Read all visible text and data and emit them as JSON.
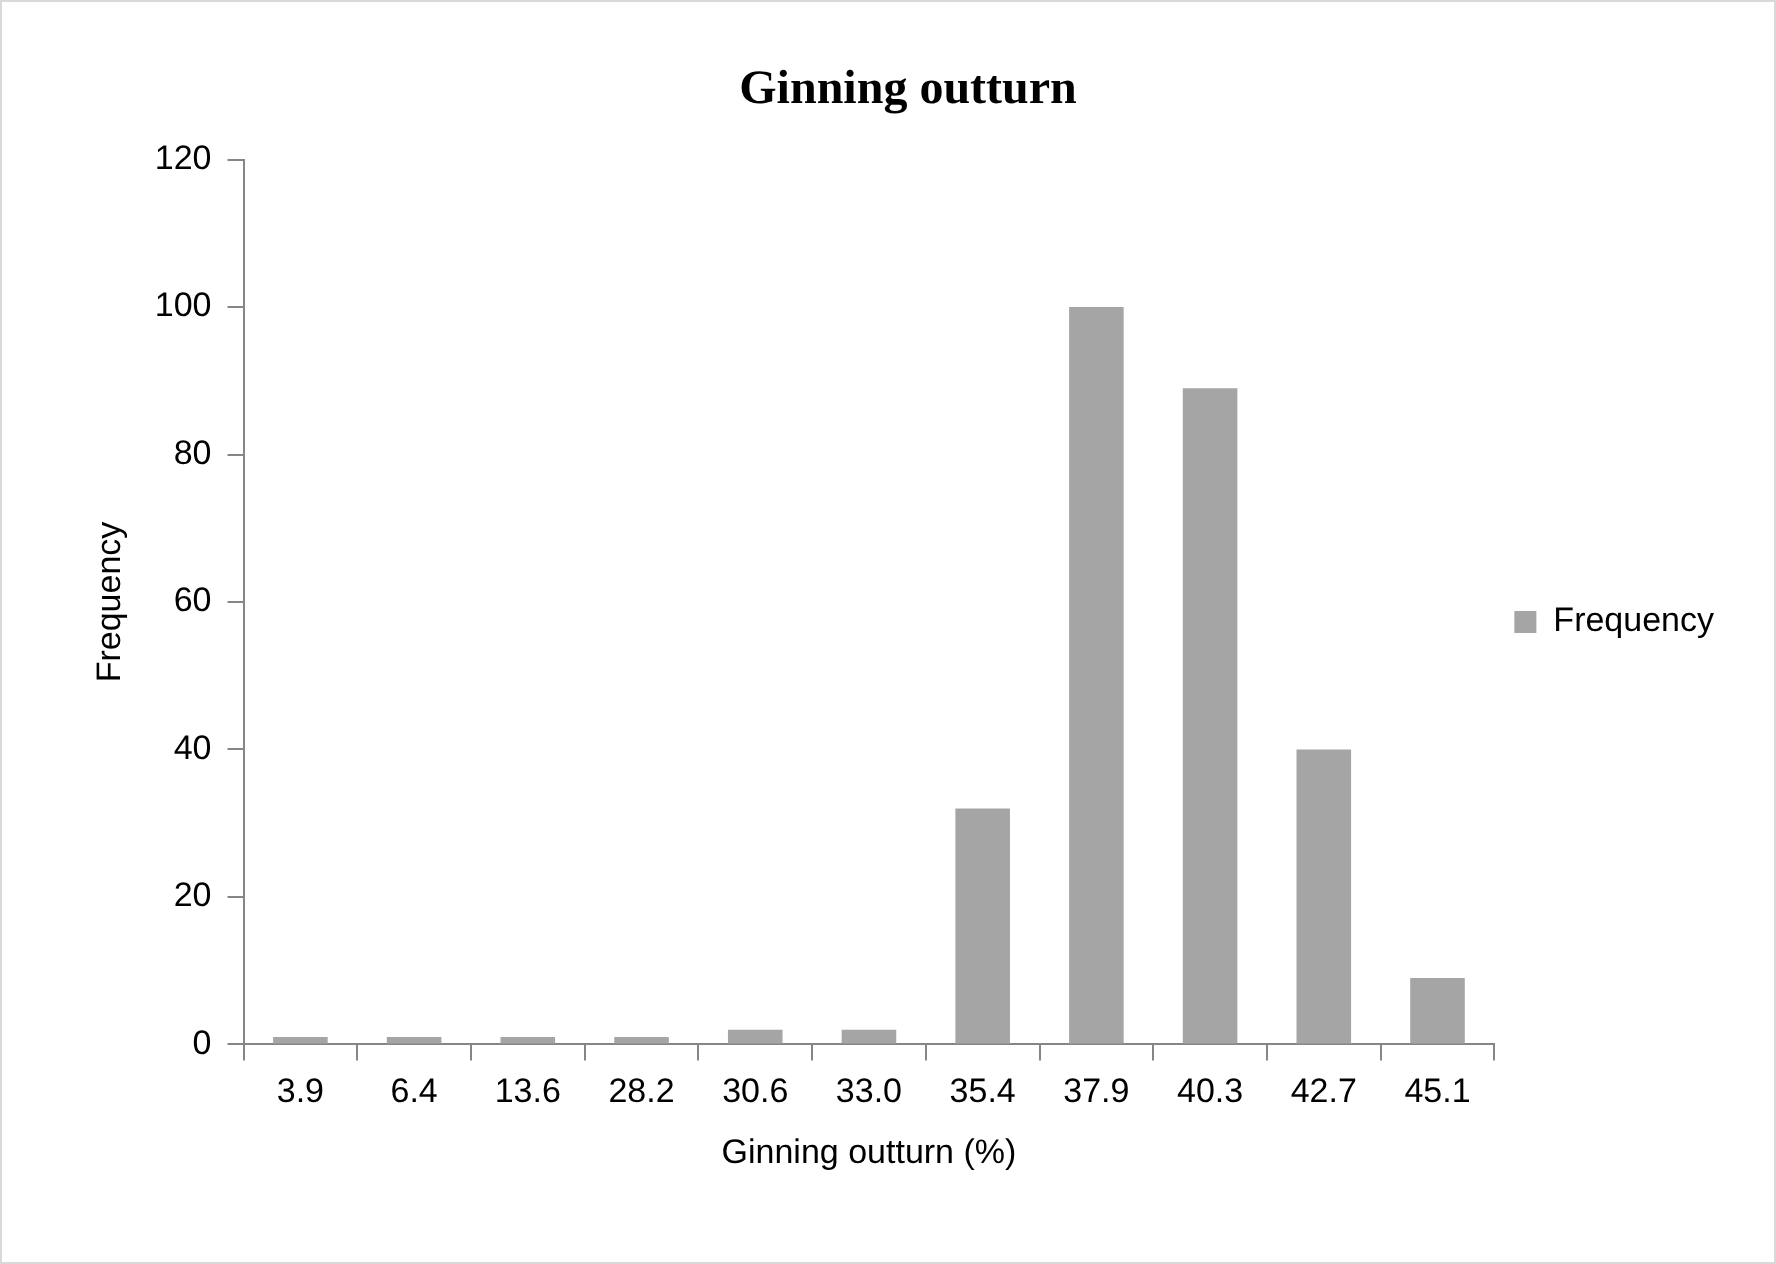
{
  "chart_data": {
    "type": "bar",
    "title": "Ginning outturn",
    "xlabel": "Ginning outturn (%)",
    "ylabel": "Frequency",
    "categories": [
      "3.9",
      "6.4",
      "13.6",
      "28.2",
      "30.6",
      "33.0",
      "35.4",
      "37.9",
      "40.3",
      "42.7",
      "45.1"
    ],
    "series": [
      {
        "name": "Frequency",
        "color": "#a5a5a5",
        "values": [
          1,
          1,
          1,
          1,
          2,
          2,
          32,
          100,
          89,
          40,
          9
        ]
      }
    ],
    "ylim": [
      0,
      120
    ],
    "yticks": [
      0,
      20,
      40,
      60,
      80,
      100,
      120
    ],
    "grid": false,
    "legend": "right"
  }
}
